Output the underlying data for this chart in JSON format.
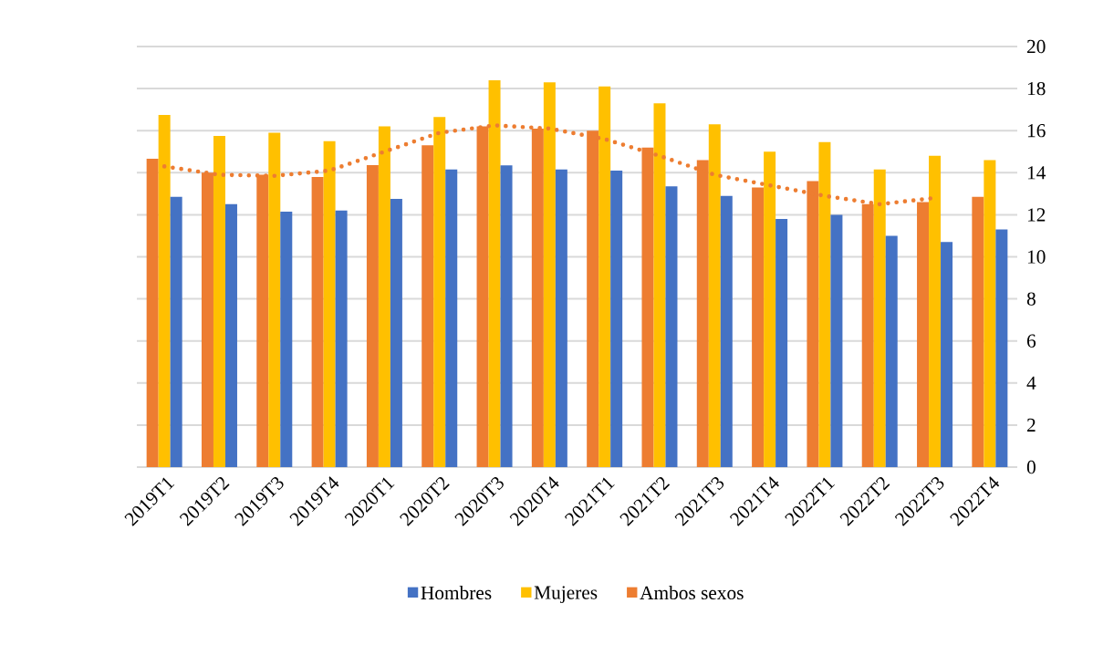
{
  "chart_data": {
    "type": "bar",
    "categories": [
      "2019T1",
      "2019T2",
      "2019T3",
      "2019T4",
      "2020T1",
      "2020T2",
      "2020T3",
      "2020T4",
      "2021T1",
      "2021T2",
      "2021T3",
      "2021T4",
      "2022T1",
      "2022T2",
      "2022T3",
      "2022T4"
    ],
    "series": [
      {
        "name": "Ambos sexos",
        "color": "#ed7d31",
        "values": [
          14.66,
          14.0,
          13.9,
          13.8,
          14.36,
          15.3,
          16.2,
          16.1,
          16.0,
          15.2,
          14.6,
          13.3,
          13.6,
          12.5,
          12.6,
          12.85
        ]
      },
      {
        "name": "Mujeres",
        "color": "#ffc000",
        "values": [
          16.75,
          15.75,
          15.9,
          15.5,
          16.2,
          16.65,
          18.4,
          18.3,
          18.1,
          17.3,
          16.3,
          15.0,
          15.45,
          14.15,
          14.8,
          14.6
        ]
      },
      {
        "name": "Hombres",
        "color": "#4472c4",
        "values": [
          12.85,
          12.5,
          12.15,
          12.2,
          12.75,
          14.15,
          14.35,
          14.15,
          14.1,
          13.35,
          12.9,
          11.8,
          12.0,
          11.0,
          10.7,
          11.3
        ]
      },
      {
        "type": "line",
        "color": "#ed7d31",
        "line_style": "dotted",
        "x": [
          "2019T1",
          "2019T2",
          "2019T3",
          "2019T4",
          "2020T1",
          "2020T2",
          "2020T3",
          "2020T4",
          "2021T1",
          "2021T2",
          "2021T3",
          "2021T4",
          "2022T1",
          "2022T2",
          "2022T3"
        ],
        "values": [
          14.3,
          13.9,
          13.85,
          14.1,
          15.0,
          15.9,
          16.25,
          16.1,
          15.6,
          14.8,
          13.9,
          13.4,
          12.9,
          12.5,
          12.8
        ]
      }
    ],
    "ylim": [
      0,
      20
    ],
    "yticks": [
      0,
      2,
      4,
      6,
      8,
      10,
      12,
      14,
      16,
      18,
      20
    ],
    "grid": "y",
    "legend": "bottom"
  }
}
